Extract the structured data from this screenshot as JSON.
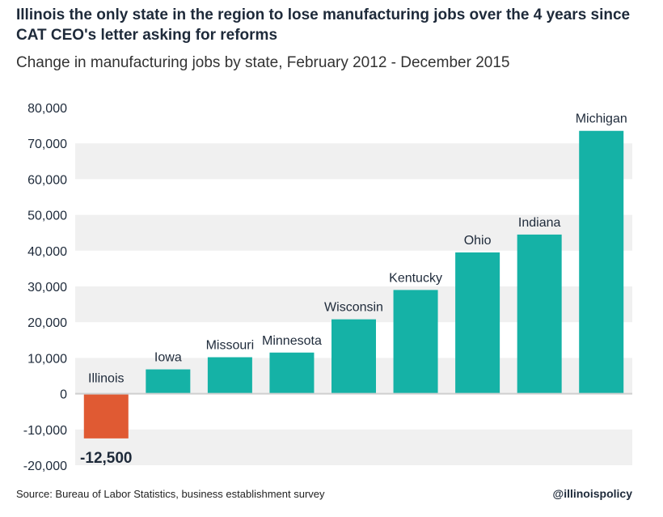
{
  "header": {
    "title": "Illinois the only state in the region to lose manufacturing jobs over the 4 years since CAT CEO's letter asking for reforms",
    "subtitle": "Change in manufacturing jobs by state, February 2012 - December 2015"
  },
  "footer": {
    "source": "Source: Bureau of Labor Statistics, business establishment survey",
    "handle": "@illinoispolicy"
  },
  "colors": {
    "positive_bar": "#15b2a6",
    "negative_bar": "#e05a33",
    "band": "#f0f0f0",
    "baseline": "#cfcfcf"
  },
  "chart_data": {
    "type": "bar",
    "title": "Change in manufacturing jobs by state, February 2012 - December 2015",
    "xlabel": "",
    "ylabel": "",
    "ylim": [
      -20000,
      80000
    ],
    "yticks": [
      80000,
      70000,
      60000,
      50000,
      40000,
      30000,
      20000,
      10000,
      0,
      -10000,
      -20000
    ],
    "ytick_labels": [
      "80,000",
      "70,000",
      "60,000",
      "50,000",
      "40,000",
      "30,000",
      "20,000",
      "10,000",
      "0",
      "-10,000",
      "-20,000"
    ],
    "categories": [
      "Illinois",
      "Iowa",
      "Missouri",
      "Minnesota",
      "Wisconsin",
      "Kentucky",
      "Ohio",
      "Indiana",
      "Michigan"
    ],
    "values": [
      -12500,
      6800,
      10200,
      11500,
      20800,
      29000,
      39500,
      44500,
      73500
    ],
    "annotations": [
      {
        "category": "Illinois",
        "text": "-12,500"
      }
    ],
    "grid": "alternating horizontal bands",
    "legend": "none"
  }
}
